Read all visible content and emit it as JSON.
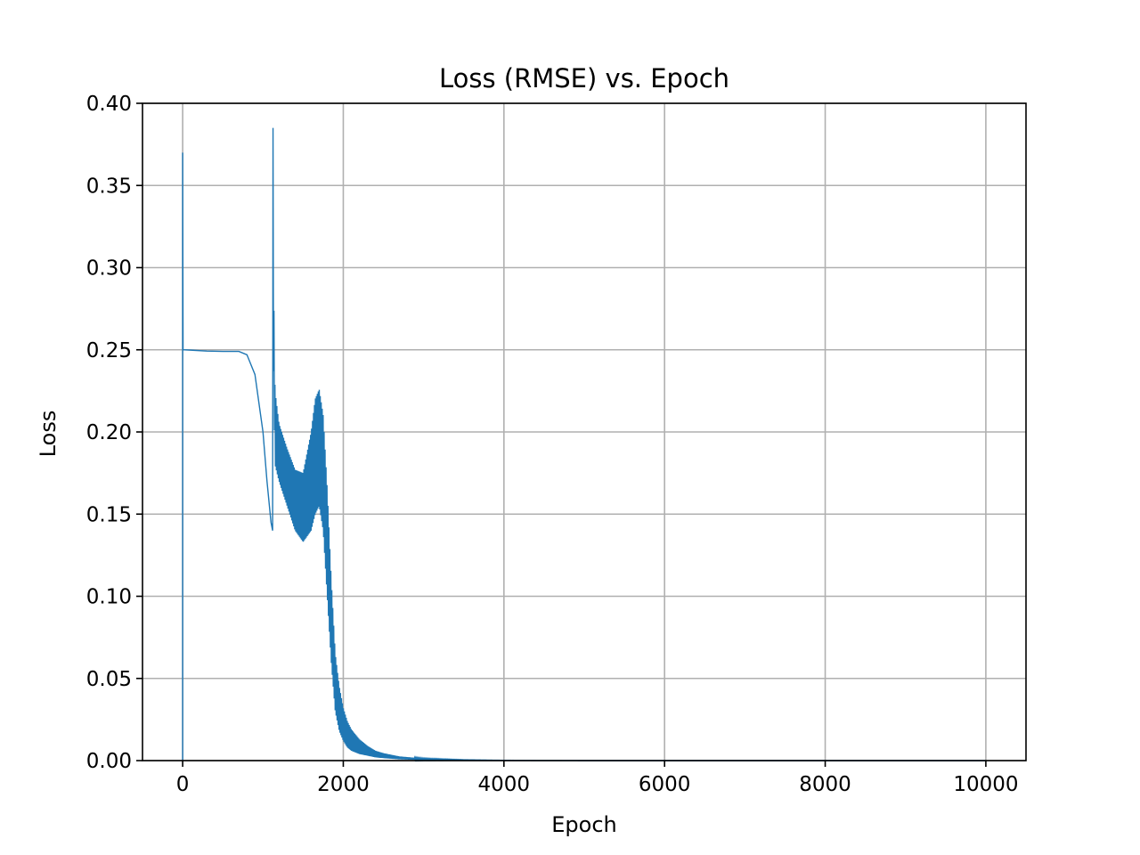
{
  "chart_data": {
    "type": "line",
    "title": "Loss (RMSE) vs. Epoch",
    "xlabel": "Epoch",
    "ylabel": "Loss",
    "xlim": [
      -500,
      10500
    ],
    "ylim": [
      0,
      0.4
    ],
    "xticks": [
      0,
      2000,
      4000,
      6000,
      8000,
      10000
    ],
    "xtick_labels": [
      "0",
      "2000",
      "4000",
      "6000",
      "8000",
      "10000"
    ],
    "yticks": [
      0.0,
      0.05,
      0.1,
      0.15,
      0.2,
      0.25,
      0.3,
      0.35,
      0.4
    ],
    "ytick_labels": [
      "0.00",
      "0.05",
      "0.10",
      "0.15",
      "0.20",
      "0.25",
      "0.30",
      "0.35",
      "0.40"
    ],
    "grid": true,
    "line_color": "#1f77b4",
    "series": [
      {
        "name": "",
        "x": [
          0,
          0,
          5,
          100,
          300,
          500,
          700,
          800,
          900,
          1000,
          1050,
          1100,
          1120,
          1125,
          1125,
          1130,
          1150,
          1200,
          1300,
          1400,
          1500,
          1600,
          1650,
          1700,
          1750,
          1800,
          1850,
          1900,
          1950,
          2000,
          2050,
          2100,
          2200,
          2300,
          2400,
          2500,
          2700,
          3000,
          3500,
          4000,
          5000,
          10000
        ],
        "upper": [
          0.0,
          0.37,
          0.25,
          0.2498,
          0.2492,
          0.249,
          0.249,
          0.247,
          0.235,
          0.2,
          0.17,
          0.145,
          0.14,
          0.385,
          0.385,
          0.3,
          0.225,
          0.205,
          0.19,
          0.177,
          0.175,
          0.2,
          0.22,
          0.226,
          0.21,
          0.165,
          0.11,
          0.065,
          0.045,
          0.032,
          0.024,
          0.019,
          0.013,
          0.009,
          0.006,
          0.0045,
          0.0025,
          0.0012,
          0.0005,
          0.0002,
          0.0,
          0.0
        ],
        "lower": [
          0.0,
          0.37,
          0.25,
          0.2498,
          0.2492,
          0.249,
          0.249,
          0.247,
          0.235,
          0.2,
          0.17,
          0.145,
          0.138,
          0.31,
          0.31,
          0.24,
          0.18,
          0.17,
          0.155,
          0.14,
          0.133,
          0.14,
          0.15,
          0.155,
          0.14,
          0.1,
          0.06,
          0.03,
          0.018,
          0.012,
          0.008,
          0.006,
          0.004,
          0.003,
          0.002,
          0.0015,
          0.0008,
          0.0004,
          0.0002,
          0.0001,
          0.0,
          0.0
        ]
      }
    ]
  }
}
